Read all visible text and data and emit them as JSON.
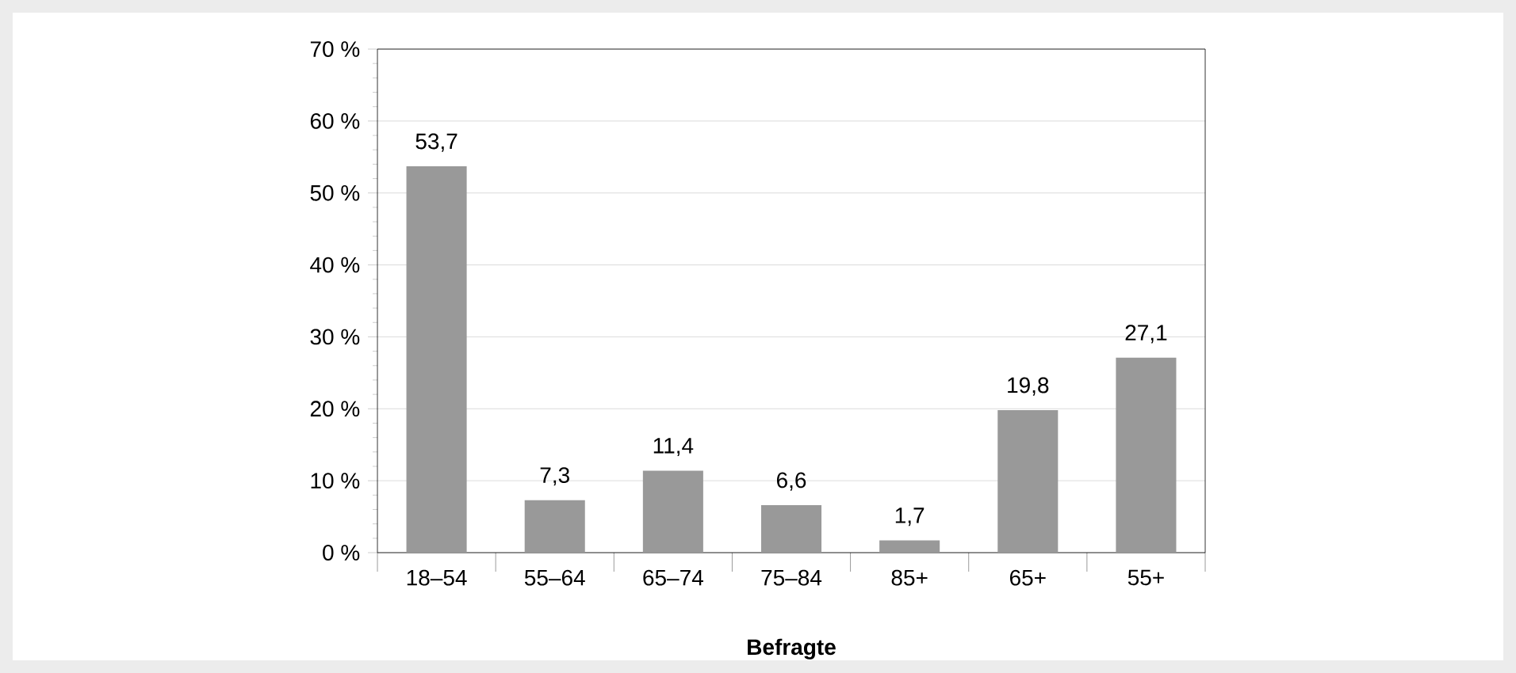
{
  "chart_data": {
    "type": "bar",
    "xlabel": "**Befragte**",
    "categories": [
      "18–54",
      "55–64",
      "65–74",
      "75–84",
      "85+",
      "65+",
      "55+"
    ],
    "values": [
      53.7,
      7.3,
      11.4,
      6.6,
      1.7,
      19.8,
      27.1
    ],
    "value_labels": [
      "53,7",
      "7,3",
      "11,4",
      "6,6",
      "1,7",
      "19,8",
      "27,1"
    ],
    "color": "#999999",
    "ylim": [
      0,
      70
    ],
    "yticks": [
      {
        "value": 0,
        "label": "0 %"
      },
      {
        "value": 10,
        "label": "10 %"
      },
      {
        "value": 20,
        "label": "20 %"
      },
      {
        "value": 30,
        "label": "30 %"
      },
      {
        "value": 40,
        "label": "40 %"
      },
      {
        "value": 50,
        "label": "50 %"
      },
      {
        "value": 60,
        "label": "60 %"
      },
      {
        "value": 70,
        "label": "70 %"
      }
    ],
    "grid": "y"
  }
}
